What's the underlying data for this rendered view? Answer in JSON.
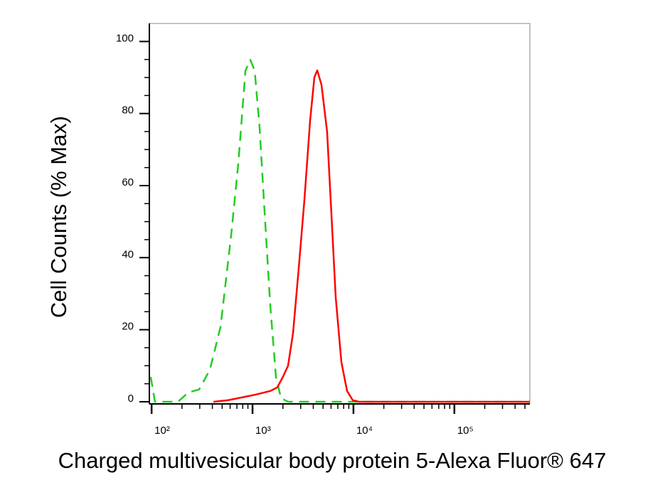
{
  "chart_data": {
    "type": "line",
    "xlabel": "Charged multivesicular body protein 5-Alexa Fluor® 647",
    "ylabel": "Cell Counts (% Max)",
    "xscale": "log",
    "xlim": [
      95,
      560000
    ],
    "ylim": [
      -0.6,
      105
    ],
    "xticks": [
      {
        "value": 100,
        "label": "10²"
      },
      {
        "value": 1000,
        "label": "10³"
      },
      {
        "value": 10000,
        "label": "10⁴"
      },
      {
        "value": 100000,
        "label": "10⁵"
      }
    ],
    "xminor_ticks": [
      200,
      300,
      400,
      500,
      600,
      700,
      800,
      900,
      2000,
      3000,
      4000,
      5000,
      6000,
      7000,
      8000,
      9000,
      20000,
      30000,
      40000,
      50000,
      60000,
      70000,
      80000,
      90000,
      200000,
      300000,
      400000,
      500000
    ],
    "yticks": [
      0,
      20,
      40,
      60,
      80,
      100
    ],
    "yminor_ticks": [
      5,
      10,
      15,
      25,
      30,
      35,
      45,
      50,
      55,
      65,
      70,
      75,
      85,
      90,
      95
    ],
    "series": [
      {
        "color": "#22cc22",
        "dashed": true,
        "x": [
          98,
          108,
          182,
          232,
          296,
          378,
          482,
          615,
          723,
          851,
          952,
          1050,
          1175,
          1318,
          1500,
          1707,
          1914,
          2250,
          560000
        ],
        "values": [
          6.9,
          0,
          0,
          2.6,
          3.4,
          8.9,
          20.8,
          46.4,
          66.2,
          91.9,
          94.9,
          91.9,
          76.1,
          52.4,
          26.7,
          6.9,
          1,
          0,
          0
        ]
      },
      {
        "color": "#ff0000",
        "dashed": false,
        "x": [
          410,
          567,
          784,
          1084,
          1500,
          1763,
          2009,
          2250,
          2519,
          2871,
          3268,
          3719,
          4102,
          4377,
          4822,
          5483,
          6050,
          6670,
          7590,
          8647,
          9840,
          11380,
          560000
        ],
        "values": [
          0,
          0.4,
          1.2,
          2,
          3,
          4,
          7,
          10,
          19,
          37,
          56,
          78,
          90,
          92,
          88,
          75,
          52,
          29,
          11,
          3,
          0.4,
          0,
          0
        ]
      }
    ]
  }
}
